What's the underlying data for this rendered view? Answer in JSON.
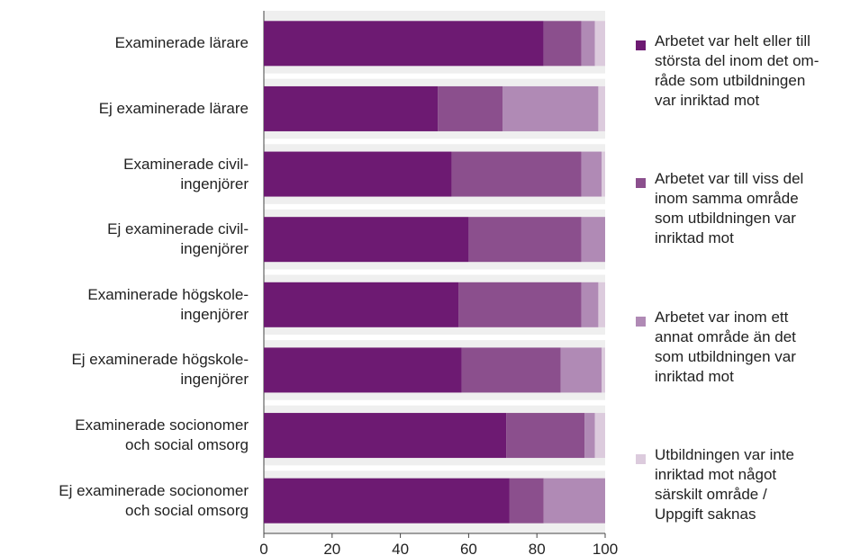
{
  "chart_data": {
    "type": "stacked-bar-horizontal",
    "categories": [
      "Examinerade lärare",
      "Ej examinerade lärare",
      "Examinerade civil-\ningenjörer",
      "Ej examinerade civil-\ningenjörer",
      "Examinerade högskole-\ningenjörer",
      "Ej examinerade högskole-\ningenjörer",
      "Examinerade socionomer\noch social omsorg",
      "Ej examinerade socionomer\noch social omsorg"
    ],
    "series": [
      {
        "name": "Arbetet var helt eller till\nstörsta del inom det om-\nråde som utbildningen\nvar inriktad mot",
        "color": "#6d1a72",
        "values": [
          82,
          51,
          55,
          60,
          57,
          58,
          71,
          72
        ]
      },
      {
        "name": "Arbetet var till viss del\ninom samma område\nsom utbildningen var\ninriktad mot",
        "color": "#8b4f8d",
        "values": [
          11,
          19,
          38,
          33,
          36,
          29,
          23,
          10
        ]
      },
      {
        "name": "Arbetet var inom ett\nannat område än det\nsom utbildningen var\ninriktad mot",
        "color": "#b08ab5",
        "values": [
          4,
          28,
          6,
          7,
          5,
          12,
          3,
          18
        ]
      },
      {
        "name": "Utbildningen var inte\ninriktad mot något\nsärskilt område /\nUppgift saknas",
        "color": "#dccbdd",
        "values": [
          3,
          2,
          1,
          0,
          2,
          1,
          3,
          0
        ]
      }
    ],
    "xlim": [
      0,
      100
    ],
    "xticks": [
      0,
      20,
      40,
      60,
      80,
      100
    ]
  }
}
